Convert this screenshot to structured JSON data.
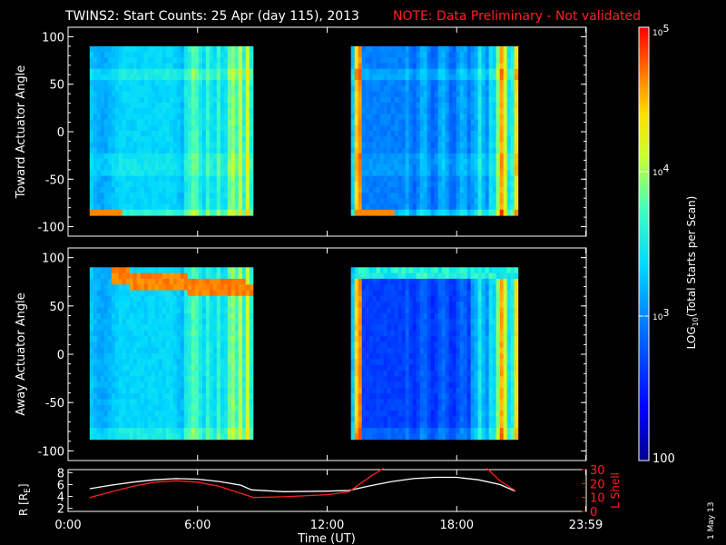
{
  "header": {
    "title": "TWINS2: Start Counts: 25 Apr (day 115), 2013",
    "note": "NOTE: Data Preliminary - Not validated"
  },
  "footer": {
    "date_stamp": "1 May 13"
  },
  "colors": {
    "background": "#000000",
    "white_line": "#ffffff",
    "red_line": "#ff2020"
  },
  "chart_data": [
    {
      "type": "heatmap",
      "name": "toward",
      "ylabel": "Toward Actuator Angle",
      "ylim": [
        -110,
        110
      ],
      "yticks": [
        100,
        50,
        0,
        -50,
        -100
      ],
      "xlim": [
        0,
        24
      ],
      "data_ranges_h": [
        [
          1.0,
          8.4
        ],
        [
          13.1,
          20.7
        ]
      ],
      "angle_range": [
        -88,
        90
      ],
      "description": "spectrogram of log start counts versus time and actuator angle"
    },
    {
      "type": "heatmap",
      "name": "away",
      "ylabel": "Away Actuator Angle",
      "ylim": [
        -110,
        110
      ],
      "yticks": [
        100,
        50,
        0,
        -50,
        -100
      ],
      "xlim": [
        0,
        24
      ],
      "data_ranges_h": [
        [
          1.0,
          8.4
        ],
        [
          13.1,
          20.7
        ]
      ],
      "angle_range": [
        -88,
        90
      ]
    },
    {
      "type": "line",
      "name": "orbit",
      "xlabel": "Time (UT)",
      "xlim": [
        0,
        24
      ],
      "xtick_labels": [
        "0:00",
        "6:00",
        "12:00",
        "18:00",
        "23:59"
      ],
      "xtick_values": [
        0,
        6,
        12,
        18,
        23.98
      ],
      "left_axis": {
        "label": "R [R",
        "label_sub": "E",
        "label_end": "]",
        "ylim": [
          1.5,
          8.5
        ],
        "ticks": [
          8,
          6,
          4,
          2
        ]
      },
      "right_axis": {
        "label": "L Shell",
        "ylim": [
          0,
          30
        ],
        "ticks": [
          30,
          20,
          10,
          0
        ]
      },
      "series": [
        {
          "axis": "left",
          "color": "#ffffff",
          "x": [
            1.0,
            2.0,
            3.0,
            4.0,
            5.0,
            6.0,
            7.0,
            8.0,
            8.5,
            10.0,
            12.0,
            13.0,
            14.0,
            15.0,
            16.0,
            17.0,
            18.0,
            19.0,
            20.0,
            20.7
          ],
          "y": [
            5.3,
            5.9,
            6.4,
            6.8,
            7.0,
            6.9,
            6.5,
            5.9,
            5.1,
            4.8,
            4.9,
            5.0,
            5.8,
            6.5,
            7.0,
            7.2,
            7.2,
            6.8,
            6.0,
            4.9
          ]
        },
        {
          "axis": "right",
          "color": "#ff2020",
          "x": [
            1.0,
            2.0,
            3.0,
            4.0,
            5.0,
            6.0,
            7.0,
            8.0,
            8.6,
            10.0,
            12.0,
            13.0,
            14.0,
            14.6
          ],
          "y": [
            10,
            14,
            18,
            21,
            22,
            21,
            18,
            13,
            10,
            10.5,
            12,
            14,
            25,
            31
          ]
        },
        {
          "axis": "right",
          "color": "#ff2020",
          "x": [
            19.4,
            20.0,
            20.7
          ],
          "y": [
            31,
            22,
            15
          ]
        }
      ]
    }
  ],
  "colorbar": {
    "label_prefix": "LOG",
    "label_sub": "10",
    "label_suffix": "(Total Starts per Scan)",
    "scale": "log",
    "min": 100,
    "max": 100000,
    "tick_labels": [
      {
        "base": "10",
        "exp": "5",
        "value": 100000
      },
      {
        "base": "10",
        "exp": "4",
        "value": 10000
      },
      {
        "base": "10",
        "exp": "3",
        "value": 1000
      },
      {
        "base": "100",
        "exp": "",
        "value": 100
      }
    ]
  }
}
